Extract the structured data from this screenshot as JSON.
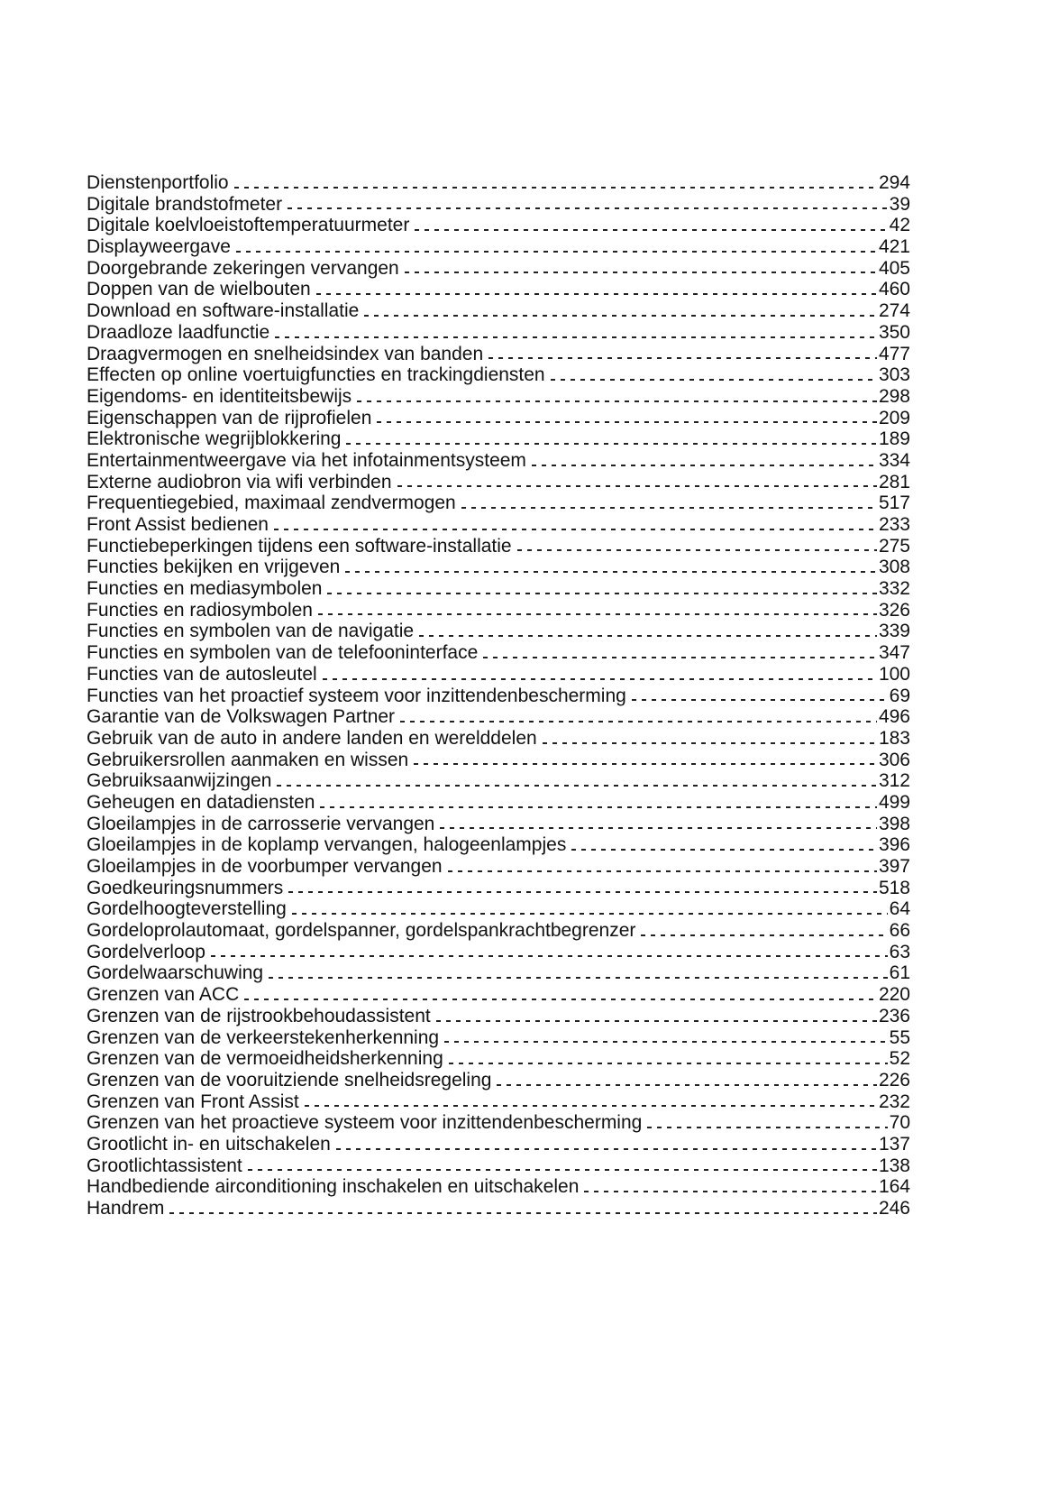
{
  "entries": [
    {
      "term": "Dienstenportfolio",
      "page": "294"
    },
    {
      "term": "Digitale brandstofmeter",
      "page": "39"
    },
    {
      "term": "Digitale koelvloeistoftemperatuurmeter",
      "page": "42"
    },
    {
      "term": "Displayweergave",
      "page": "421"
    },
    {
      "term": "Doorgebrande zekeringen vervangen",
      "page": "405"
    },
    {
      "term": "Doppen van de wielbouten",
      "page": "460"
    },
    {
      "term": "Download en software-installatie",
      "page": "274"
    },
    {
      "term": "Draadloze laadfunctie",
      "page": "350"
    },
    {
      "term": "Draagvermogen en snelheidsindex van banden",
      "page": "477"
    },
    {
      "term": "Effecten op online voertuigfuncties en trackingdiensten",
      "page": "303"
    },
    {
      "term": "Eigendoms- en identiteitsbewijs",
      "page": "298"
    },
    {
      "term": "Eigenschappen van de rijprofielen",
      "page": "209"
    },
    {
      "term": "Elektronische wegrijblokkering",
      "page": "189"
    },
    {
      "term": "Entertainmentweergave via het infotainmentsysteem",
      "page": "334"
    },
    {
      "term": "Externe audiobron via wifi verbinden",
      "page": "281"
    },
    {
      "term": "Frequentiegebied, maximaal zendvermogen",
      "page": "517"
    },
    {
      "term": "Front Assist bedienen",
      "page": "233"
    },
    {
      "term": "Functiebeperkingen tijdens een software-installatie",
      "page": "275"
    },
    {
      "term": "Functies bekijken en vrijgeven",
      "page": "308"
    },
    {
      "term": "Functies en mediasymbolen",
      "page": "332"
    },
    {
      "term": "Functies en radiosymbolen",
      "page": "326"
    },
    {
      "term": "Functies en symbolen van de navigatie",
      "page": "339"
    },
    {
      "term": "Functies en symbolen van de telefooninterface",
      "page": "347"
    },
    {
      "term": "Functies van de autosleutel",
      "page": "100"
    },
    {
      "term": "Functies van het proactief systeem voor inzittendenbescherming",
      "page": "69"
    },
    {
      "term": "Garantie van de Volkswagen Partner",
      "page": "496"
    },
    {
      "term": "Gebruik van de auto in andere landen en werelddelen",
      "page": "183"
    },
    {
      "term": "Gebruikersrollen aanmaken en wissen",
      "page": "306"
    },
    {
      "term": "Gebruiksaanwijzingen",
      "page": "312"
    },
    {
      "term": "Geheugen en datadiensten",
      "page": "499"
    },
    {
      "term": "Gloeilampjes in de carrosserie vervangen",
      "page": "398"
    },
    {
      "term": "Gloeilampjes in de koplamp vervangen, halogeenlampjes",
      "page": "396"
    },
    {
      "term": "Gloeilampjes in de voorbumper vervangen",
      "page": "397"
    },
    {
      "term": "Goedkeuringsnummers",
      "page": "518"
    },
    {
      "term": "Gordelhoogteverstelling",
      "page": "64"
    },
    {
      "term": "Gordeloprolautomaat, gordelspanner, gordelspankrachtbegrenzer",
      "page": "66"
    },
    {
      "term": "Gordelverloop",
      "page": "63"
    },
    {
      "term": "Gordelwaarschuwing",
      "page": "61"
    },
    {
      "term": "Grenzen van ACC",
      "page": "220"
    },
    {
      "term": "Grenzen van de rijstrookbehoudassistent",
      "page": "236"
    },
    {
      "term": "Grenzen van de verkeerstekenherkenning",
      "page": "55"
    },
    {
      "term": "Grenzen van de vermoeidheidsherkenning",
      "page": "52"
    },
    {
      "term": "Grenzen van de vooruitziende snelheidsregeling",
      "page": "226"
    },
    {
      "term": "Grenzen van Front Assist",
      "page": "232"
    },
    {
      "term": "Grenzen van het proactieve systeem voor inzittendenbescherming",
      "page": "70"
    },
    {
      "term": "Grootlicht in- en uitschakelen",
      "page": "137"
    },
    {
      "term": "Grootlichtassistent",
      "page": "138"
    },
    {
      "term": "Handbediende airconditioning inschakelen en uitschakelen",
      "page": "164"
    },
    {
      "term": "Handrem",
      "page": "246"
    }
  ]
}
